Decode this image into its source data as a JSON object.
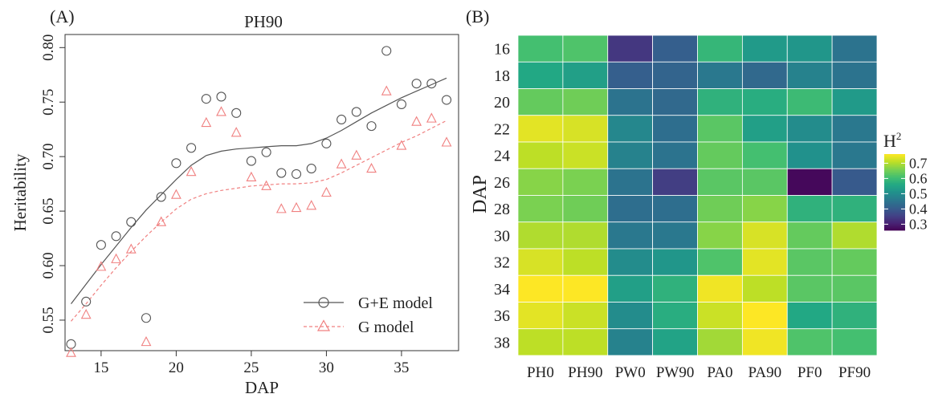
{
  "panels": {
    "a": {
      "tag": "(A)",
      "title": "PH90",
      "xlabel": "DAP",
      "ylabel": "Heritability",
      "legend": [
        "G+E model",
        "G model"
      ]
    },
    "b": {
      "tag": "(B)",
      "ylabel": "DAP",
      "colorbar_title": "H",
      "colorbar_title_sup": "2"
    }
  },
  "chart_data": [
    {
      "type": "scatter",
      "title": "PH90",
      "xlabel": "DAP",
      "ylabel": "Heritability",
      "xlim": [
        12.6,
        38.8
      ],
      "ylim": [
        0.522,
        0.812
      ],
      "xticks": [
        15,
        20,
        25,
        30,
        35
      ],
      "yticks": [
        0.55,
        0.6,
        0.65,
        0.7,
        0.75,
        0.8
      ],
      "ytick_labels": [
        "0.55",
        "0.60",
        "0.65",
        "0.70",
        "0.75",
        "0.80"
      ],
      "legend_position": "bottom-right",
      "grid": false,
      "series": [
        {
          "name": "G+E model",
          "marker": "circle",
          "color": "#555555",
          "x": [
            13,
            14,
            15,
            16,
            17,
            18,
            19,
            20,
            21,
            22,
            23,
            24,
            25,
            26,
            27,
            28,
            29,
            30,
            31,
            32,
            33,
            34,
            35,
            36,
            37,
            38
          ],
          "y": [
            0.528,
            0.567,
            0.619,
            0.627,
            0.64,
            0.552,
            0.663,
            0.694,
            0.708,
            0.753,
            0.755,
            0.74,
            0.696,
            0.704,
            0.685,
            0.684,
            0.689,
            0.712,
            0.734,
            0.741,
            0.728,
            0.797,
            0.748,
            0.767,
            0.767,
            0.752
          ],
          "smooth": {
            "style": "solid",
            "x": [
              13,
              14,
              15,
              16,
              17,
              18,
              19,
              20,
              21,
              22,
              23,
              24,
              25,
              26,
              27,
              28,
              29,
              30,
              31,
              32,
              33,
              34,
              35,
              36,
              37,
              38
            ],
            "y": [
              0.565,
              0.583,
              0.601,
              0.618,
              0.635,
              0.651,
              0.665,
              0.679,
              0.692,
              0.701,
              0.705,
              0.707,
              0.708,
              0.709,
              0.71,
              0.71,
              0.712,
              0.717,
              0.724,
              0.732,
              0.74,
              0.747,
              0.754,
              0.76,
              0.766,
              0.772
            ]
          }
        },
        {
          "name": "G model",
          "marker": "triangle",
          "color": "#f08080",
          "x": [
            13,
            14,
            15,
            16,
            17,
            18,
            19,
            20,
            21,
            22,
            23,
            24,
            25,
            26,
            27,
            28,
            29,
            30,
            31,
            32,
            33,
            34,
            35,
            36,
            37,
            38
          ],
          "y": [
            0.52,
            0.555,
            0.599,
            0.606,
            0.615,
            0.53,
            0.64,
            0.665,
            0.686,
            0.731,
            0.741,
            0.722,
            0.681,
            0.673,
            0.652,
            0.653,
            0.655,
            0.667,
            0.693,
            0.701,
            0.689,
            0.76,
            0.71,
            0.732,
            0.735,
            0.713
          ],
          "smooth": {
            "style": "dashed",
            "x": [
              13,
              14,
              15,
              16,
              17,
              18,
              19,
              20,
              21,
              22,
              23,
              24,
              25,
              26,
              27,
              28,
              29,
              30,
              31,
              32,
              33,
              34,
              35,
              36,
              37,
              38
            ],
            "y": [
              0.549,
              0.565,
              0.582,
              0.598,
              0.613,
              0.627,
              0.64,
              0.652,
              0.661,
              0.666,
              0.669,
              0.671,
              0.673,
              0.674,
              0.675,
              0.675,
              0.676,
              0.679,
              0.685,
              0.692,
              0.699,
              0.706,
              0.713,
              0.719,
              0.726,
              0.733
            ]
          }
        }
      ]
    },
    {
      "type": "heatmap",
      "xlabel": "",
      "ylabel": "DAP",
      "x_categories": [
        "PH0",
        "PH90",
        "PW0",
        "PW90",
        "PA0",
        "PA90",
        "PF0",
        "PF90"
      ],
      "y_categories": [
        "16",
        "18",
        "20",
        "22",
        "24",
        "26",
        "28",
        "30",
        "32",
        "34",
        "36",
        "38"
      ],
      "colorbar": {
        "title": "H",
        "title_sup": "2",
        "range": [
          0.26,
          0.76
        ],
        "ticks": [
          0.3,
          0.4,
          0.5,
          0.6,
          0.7
        ],
        "tick_labels": [
          "0.3",
          "0.4",
          "0.5",
          "0.6",
          "0.7"
        ],
        "colormap": "viridis"
      },
      "values": [
        [
          0.61,
          0.62,
          0.34,
          0.41,
          0.59,
          0.53,
          0.52,
          0.45
        ],
        [
          0.56,
          0.54,
          0.41,
          0.42,
          0.46,
          0.43,
          0.48,
          0.45
        ],
        [
          0.64,
          0.65,
          0.45,
          0.43,
          0.58,
          0.57,
          0.6,
          0.53
        ],
        [
          0.74,
          0.73,
          0.49,
          0.44,
          0.63,
          0.54,
          0.5,
          0.46
        ],
        [
          0.71,
          0.72,
          0.48,
          0.45,
          0.64,
          0.61,
          0.51,
          0.46
        ],
        [
          0.67,
          0.66,
          0.45,
          0.35,
          0.63,
          0.63,
          0.27,
          0.4
        ],
        [
          0.66,
          0.65,
          0.44,
          0.44,
          0.65,
          0.67,
          0.58,
          0.58
        ],
        [
          0.7,
          0.7,
          0.46,
          0.46,
          0.67,
          0.73,
          0.64,
          0.7
        ],
        [
          0.73,
          0.71,
          0.5,
          0.52,
          0.62,
          0.74,
          0.63,
          0.64
        ],
        [
          0.77,
          0.78,
          0.54,
          0.58,
          0.75,
          0.71,
          0.63,
          0.63
        ],
        [
          0.74,
          0.72,
          0.5,
          0.57,
          0.72,
          0.78,
          0.56,
          0.58
        ],
        [
          0.71,
          0.71,
          0.48,
          0.55,
          0.69,
          0.75,
          0.62,
          0.61
        ]
      ]
    }
  ]
}
